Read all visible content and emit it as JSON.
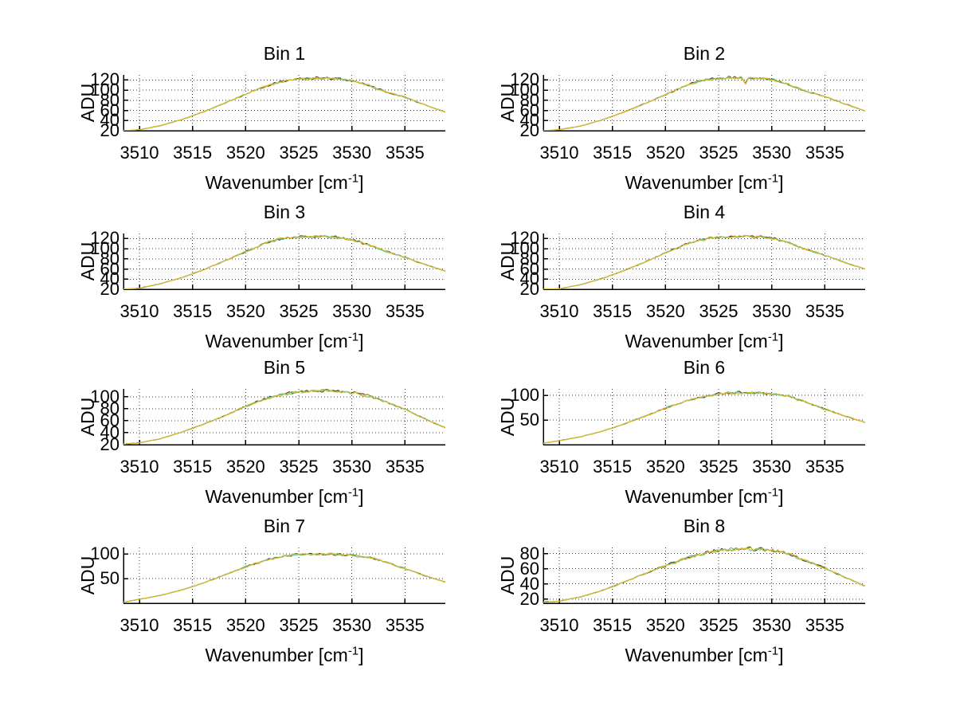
{
  "figure": {
    "background": "#ffffff",
    "y_axis_label": "ADU",
    "x_axis_label": {
      "pre": "Wavenumber [cm",
      "sup": "-1",
      "post": "]"
    }
  },
  "chart_data": {
    "type": "line",
    "layout": "4x2 subplot grid",
    "xlabel": "Wavenumber [cm⁻¹]",
    "ylabel": "ADU",
    "grid": "dotted",
    "legend": "none",
    "xlim": [
      3508.5,
      3538.8
    ],
    "xticks": [
      3510,
      3515,
      3520,
      3525,
      3530,
      3535
    ],
    "x_envelope": [
      3508.5,
      3510,
      3512,
      3514,
      3516,
      3518,
      3520,
      3522,
      3523.5,
      3525,
      3527,
      3528.5,
      3530,
      3531.5,
      3533,
      3535,
      3537,
      3538.8
    ],
    "line_colors": {
      "primary": "#d9b62c",
      "secondary": "#52c79a",
      "tertiary": "#463a14"
    },
    "noise_amp_adu": 3,
    "plots": [
      {
        "title": "Bin 1",
        "ylim": [
          20,
          130
        ],
        "yticks": [
          20,
          40,
          60,
          80,
          100,
          120
        ],
        "values": [
          20,
          22,
          30,
          42,
          57,
          74,
          92,
          109,
          117,
          122,
          124,
          123,
          119,
          110,
          98,
          86,
          70,
          57
        ]
      },
      {
        "title": "Bin 2",
        "ylim": [
          20,
          130
        ],
        "yticks": [
          20,
          40,
          60,
          80,
          100,
          120
        ],
        "values": [
          20,
          22,
          29,
          41,
          56,
          73,
          91,
          110,
          119,
          123,
          125,
          124,
          121,
          112,
          99,
          87,
          72,
          59
        ],
        "dip": {
          "x": 3527.5,
          "depth": 12
        }
      },
      {
        "title": "Bin 3",
        "ylim": [
          20,
          130
        ],
        "yticks": [
          20,
          40,
          60,
          80,
          100,
          120
        ],
        "values": [
          20,
          22,
          31,
          43,
          58,
          76,
          94,
          112,
          120,
          123,
          124,
          123,
          118,
          108,
          96,
          83,
          68,
          56
        ]
      },
      {
        "title": "Bin 4",
        "ylim": [
          20,
          130
        ],
        "yticks": [
          20,
          40,
          60,
          80,
          100,
          120
        ],
        "values": [
          20,
          21,
          29,
          41,
          56,
          73,
          92,
          110,
          118,
          122,
          124,
          124,
          121,
          113,
          100,
          87,
          72,
          60
        ]
      },
      {
        "title": "Bin 5",
        "ylim": [
          20,
          113
        ],
        "yticks": [
          20,
          40,
          60,
          80,
          100
        ],
        "values": [
          21,
          23,
          30,
          41,
          54,
          68,
          84,
          97,
          104,
          108,
          110,
          110,
          107,
          102,
          93,
          79,
          62,
          48
        ]
      },
      {
        "title": "Bin 6",
        "ylim": [
          0,
          113
        ],
        "yticks": [
          50,
          100
        ],
        "values": [
          3,
          8,
          16,
          27,
          41,
          57,
          74,
          89,
          97,
          103,
          106,
          105,
          103,
          98,
          88,
          72,
          57,
          45
        ]
      },
      {
        "title": "Bin 7",
        "ylim": [
          0,
          113
        ],
        "yticks": [
          50,
          100
        ],
        "values": [
          2,
          8,
          16,
          27,
          41,
          57,
          74,
          88,
          95,
          99,
          100,
          99,
          97,
          93,
          85,
          70,
          55,
          43
        ]
      },
      {
        "title": "Bin 8",
        "ylim": [
          14.5,
          88
        ],
        "yticks": [
          20,
          40,
          60,
          80
        ],
        "values": [
          16,
          17,
          23,
          31,
          42,
          53,
          64,
          74,
          80,
          84,
          86,
          86,
          84,
          80,
          72,
          61,
          48,
          37
        ]
      }
    ]
  }
}
